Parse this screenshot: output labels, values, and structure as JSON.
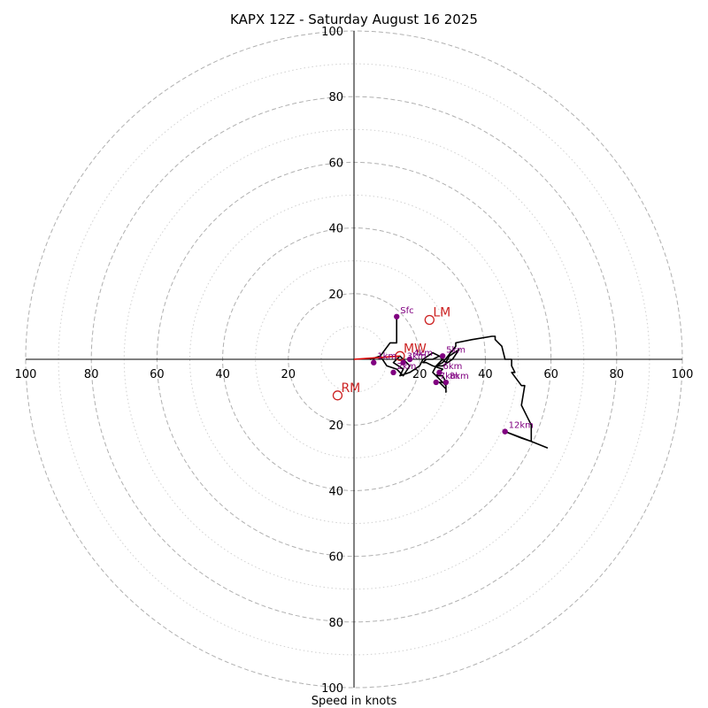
{
  "chart_data": {
    "type": "hodograph",
    "title": "KAPX 12Z - Saturday August 16 2025",
    "xlabel": "Speed in knots",
    "units": "knots",
    "range": [
      -100,
      100
    ],
    "rings_major": [
      20,
      40,
      60,
      80,
      100
    ],
    "rings_minor": [
      10,
      30,
      50,
      70,
      90
    ],
    "tick_labels": {
      "left": [
        "100",
        "80",
        "60",
        "40",
        "20"
      ],
      "right": [
        "20",
        "40",
        "60",
        "80",
        "100"
      ],
      "top": [
        "100",
        "80",
        "60",
        "40",
        "20"
      ],
      "bottom": [
        "20",
        "40",
        "60",
        "80",
        "100"
      ]
    },
    "grid": true,
    "trace": {
      "color": "#000000",
      "points": [
        [
          13,
          13
        ],
        [
          13,
          5
        ],
        [
          11,
          5
        ],
        [
          8,
          1
        ],
        [
          5,
          0
        ],
        [
          8,
          1
        ],
        [
          10,
          -2
        ],
        [
          13,
          -3
        ],
        [
          15,
          -5
        ],
        [
          17,
          -2
        ],
        [
          14,
          1
        ],
        [
          12,
          -1
        ],
        [
          15,
          -3
        ],
        [
          14,
          -5
        ],
        [
          17,
          -4
        ],
        [
          20,
          -2
        ],
        [
          21,
          0
        ],
        [
          24,
          2
        ],
        [
          26,
          1
        ],
        [
          28,
          -1
        ],
        [
          29,
          1
        ],
        [
          32,
          3
        ],
        [
          30,
          0
        ],
        [
          27,
          -2
        ],
        [
          25,
          -2
        ],
        [
          27,
          0
        ],
        [
          26,
          1
        ],
        [
          24,
          0
        ],
        [
          22,
          0
        ],
        [
          21,
          -1
        ],
        [
          22,
          -1
        ],
        [
          24,
          -2
        ],
        [
          27,
          -3
        ],
        [
          26,
          -4
        ],
        [
          25,
          -5
        ],
        [
          27,
          -5
        ],
        [
          28,
          -7
        ],
        [
          26,
          -7
        ],
        [
          27,
          -8
        ],
        [
          28,
          -9
        ],
        [
          28,
          -10
        ],
        [
          28,
          -8
        ],
        [
          26,
          -6
        ],
        [
          24,
          -4
        ],
        [
          25,
          -2
        ],
        [
          27,
          -1
        ],
        [
          31,
          4
        ],
        [
          31,
          5
        ],
        [
          36,
          6
        ],
        [
          42,
          7
        ],
        [
          43,
          7
        ],
        [
          43,
          6
        ],
        [
          44,
          5
        ],
        [
          45,
          4
        ],
        [
          46,
          0
        ],
        [
          48,
          0
        ],
        [
          48,
          -2
        ],
        [
          49,
          -4
        ],
        [
          48,
          -4
        ],
        [
          51,
          -8
        ],
        [
          52,
          -8
        ],
        [
          51,
          -14
        ],
        [
          53,
          -18
        ],
        [
          54,
          -20
        ],
        [
          54,
          -25
        ],
        [
          51,
          -24
        ],
        [
          46,
          -22
        ],
        [
          54,
          -25
        ],
        [
          59,
          -27
        ]
      ]
    },
    "height_markers": [
      {
        "label": "Sfc",
        "u": 13,
        "v": 13
      },
      {
        "label": "1km",
        "u": 6,
        "v": -1
      },
      {
        "label": "2km",
        "u": 12,
        "v": -4
      },
      {
        "label": "3km",
        "u": 15,
        "v": -1
      },
      {
        "label": "4km",
        "u": 17,
        "v": 0
      },
      {
        "label": "5km",
        "u": 27,
        "v": 1
      },
      {
        "label": "6km",
        "u": 26,
        "v": -4
      },
      {
        "label": "7km",
        "u": 25,
        "v": -7
      },
      {
        "label": "8km",
        "u": 28,
        "v": -7
      },
      {
        "label": "12km",
        "u": 46,
        "v": -22
      }
    ],
    "motion_markers": [
      {
        "label": "LM",
        "u": 23,
        "v": 12
      },
      {
        "label": "RM",
        "u": -5,
        "v": -11
      },
      {
        "label": "MW",
        "u": 14,
        "v": 1
      }
    ],
    "motion_vector": {
      "from": [
        0,
        0
      ],
      "to": [
        14,
        1
      ],
      "color": "#dd0000"
    },
    "colors": {
      "trace": "#000000",
      "height_marker": "#800080",
      "motion_marker": "#cc2222",
      "grid": "#b0b0b0",
      "axis": "#000000"
    }
  }
}
